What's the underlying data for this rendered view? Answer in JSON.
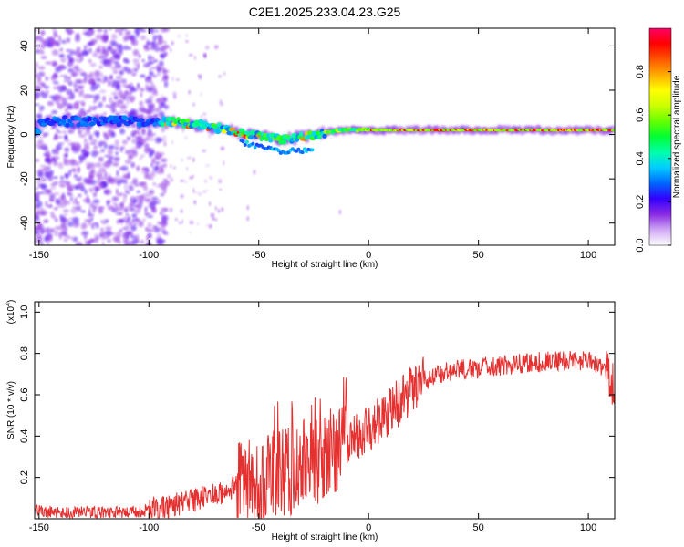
{
  "title": "C2E1.2025.233.04.23.G25",
  "chart_data": [
    {
      "type": "heatmap",
      "xlabel": "Height of straight line (km)",
      "ylabel": "Frequency (Hz)",
      "xlim": [
        -152,
        112
      ],
      "ylim": [
        -50,
        48
      ],
      "xticks": [
        -150,
        -100,
        -50,
        0,
        50,
        100
      ],
      "yticks": [
        -40,
        -20,
        0,
        20,
        40
      ],
      "colorbar": {
        "label": "Normalized spectral amplitude",
        "range": [
          0,
          1
        ],
        "ticks": [
          0.0,
          0.2,
          0.4,
          0.6,
          0.8
        ],
        "tick_labels": [
          "0.0",
          "0.2",
          "0.4",
          "0.6",
          "0.8"
        ],
        "colors": [
          "#ffffff",
          "#cfa8f5",
          "#8a2be2",
          "#3300ff",
          "#0066ff",
          "#00ccff",
          "#00ffaa",
          "#00ff33",
          "#66ff00",
          "#ccff00",
          "#ffff00",
          "#ffaa00",
          "#ff5500",
          "#ff0000",
          "#ff0066"
        ]
      },
      "ridge": [
        {
          "x": -150,
          "freq": 6
        },
        {
          "x": -130,
          "freq": 6
        },
        {
          "x": -110,
          "freq": 6
        },
        {
          "x": -95,
          "freq": 6
        },
        {
          "x": -80,
          "freq": 5
        },
        {
          "x": -70,
          "freq": 3
        },
        {
          "x": -60,
          "freq": 1
        },
        {
          "x": -50,
          "freq": -1
        },
        {
          "x": -40,
          "freq": -2
        },
        {
          "x": -30,
          "freq": -1
        },
        {
          "x": -20,
          "freq": 1
        },
        {
          "x": -10,
          "freq": 2
        },
        {
          "x": 0,
          "freq": 2
        },
        {
          "x": 50,
          "freq": 2
        },
        {
          "x": 112,
          "freq": 2
        }
      ]
    },
    {
      "type": "line",
      "xlabel": "Height of straight line (km)",
      "ylabel": "SNR (10 * v/v)",
      "y_scale_label": "(x10",
      "y_scale_exp": "4",
      "y_scale_close": ")",
      "xlim": [
        -152,
        112
      ],
      "ylim": [
        0,
        1.05
      ],
      "xticks": [
        -150,
        -100,
        -50,
        0,
        50,
        100
      ],
      "yticks": [
        0.2,
        0.4,
        0.6,
        0.8,
        1.0
      ],
      "ytick_labels": [
        "0.2",
        "0.4",
        "0.6",
        "0.8",
        "1.0"
      ],
      "series": [
        {
          "name": "SNR",
          "color": "#e53030",
          "x": [
            -152,
            -140,
            -125,
            -110,
            -100,
            -90,
            -80,
            -70,
            -60,
            -50,
            -45,
            -40,
            -35,
            -30,
            -25,
            -20,
            -15,
            -10,
            -5,
            0,
            5,
            10,
            15,
            20,
            25,
            30,
            35,
            40,
            50,
            60,
            70,
            80,
            90,
            100,
            105,
            108,
            110,
            112
          ],
          "y": [
            0.04,
            0.03,
            0.03,
            0.03,
            0.04,
            0.06,
            0.09,
            0.12,
            0.15,
            0.18,
            0.2,
            0.22,
            0.24,
            0.26,
            0.28,
            0.31,
            0.33,
            0.36,
            0.4,
            0.43,
            0.47,
            0.52,
            0.58,
            0.63,
            0.67,
            0.69,
            0.71,
            0.72,
            0.73,
            0.74,
            0.75,
            0.76,
            0.76,
            0.77,
            0.74,
            0.7,
            0.68,
            0.65
          ]
        }
      ]
    }
  ]
}
